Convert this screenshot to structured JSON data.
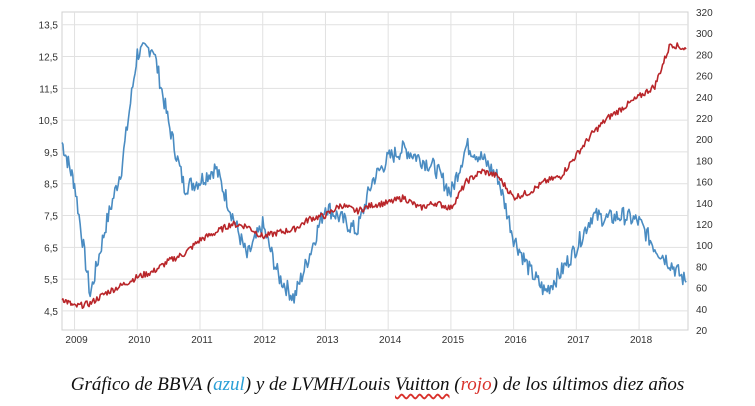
{
  "chart_data": {
    "type": "line",
    "title": "",
    "x": [
      2008.8,
      2009.0,
      2009.25,
      2009.5,
      2009.75,
      2010.0,
      2010.25,
      2010.5,
      2010.75,
      2011.0,
      2011.25,
      2011.5,
      2011.75,
      2012.0,
      2012.25,
      2012.5,
      2012.75,
      2013.0,
      2013.25,
      2013.5,
      2013.75,
      2014.0,
      2014.25,
      2014.5,
      2014.75,
      2015.0,
      2015.25,
      2015.5,
      2015.75,
      2016.0,
      2016.25,
      2016.5,
      2016.75,
      2017.0,
      2017.25,
      2017.5,
      2017.75,
      2018.0,
      2018.25,
      2018.5,
      2018.75
    ],
    "x_ticks": [
      "2009",
      "2010",
      "2011",
      "2012",
      "2013",
      "2014",
      "2015",
      "2016",
      "2017",
      "2018"
    ],
    "x_tick_values": [
      2009,
      2010,
      2011,
      2012,
      2013,
      2014,
      2015,
      2016,
      2017,
      2018
    ],
    "xlim": [
      2008.8,
      2018.78
    ],
    "y_left": {
      "ticks": [
        "4,5",
        "5,5",
        "6,5",
        "7,5",
        "8,5",
        "9,5",
        "10,5",
        "11,5",
        "12,5",
        "13,5"
      ],
      "tick_values": [
        4.5,
        5.5,
        6.5,
        7.5,
        8.5,
        9.5,
        10.5,
        11.5,
        12.5,
        13.5
      ],
      "ylim": [
        3.9,
        13.9
      ]
    },
    "y_right": {
      "ticks": [
        "20",
        "40",
        "60",
        "80",
        "100",
        "120",
        "140",
        "160",
        "180",
        "200",
        "220",
        "240",
        "260",
        "280",
        "300",
        "320"
      ],
      "tick_values": [
        20,
        40,
        60,
        80,
        100,
        120,
        140,
        160,
        180,
        200,
        220,
        240,
        260,
        280,
        300,
        320
      ],
      "ylim": [
        20,
        320
      ]
    },
    "series": [
      {
        "axis": "left",
        "color": "#4a8cc2",
        "values": [
          9.8,
          8.5,
          5.0,
          7.2,
          9.0,
          12.6,
          12.8,
          10.4,
          8.4,
          8.6,
          9.0,
          7.6,
          6.2,
          7.2,
          5.6,
          4.9,
          6.3,
          7.8,
          7.4,
          7.0,
          8.6,
          9.3,
          9.6,
          9.3,
          9.0,
          8.2,
          9.7,
          9.3,
          8.7,
          6.8,
          5.8,
          5.1,
          5.7,
          6.5,
          7.5,
          7.4,
          7.5,
          7.3,
          6.5,
          6.0,
          5.4
        ]
      },
      {
        "axis": "right",
        "color": "#b9262a",
        "values": [
          50,
          42,
          45,
          55,
          62,
          70,
          75,
          85,
          92,
          105,
          112,
          120,
          118,
          108,
          112,
          115,
          125,
          128,
          138,
          132,
          138,
          140,
          145,
          135,
          140,
          135,
          160,
          170,
          165,
          145,
          150,
          160,
          165,
          185,
          205,
          220,
          230,
          240,
          250,
          290,
          285
        ]
      }
    ]
  },
  "caption": {
    "p1": "Gráfico de BBVA (",
    "blue": "azul",
    "p2": ") y de LVMH/Louis ",
    "vuitton": "Vuitton",
    "p3": " (",
    "red": "rojo",
    "p4": ") de los últimos diez años"
  }
}
